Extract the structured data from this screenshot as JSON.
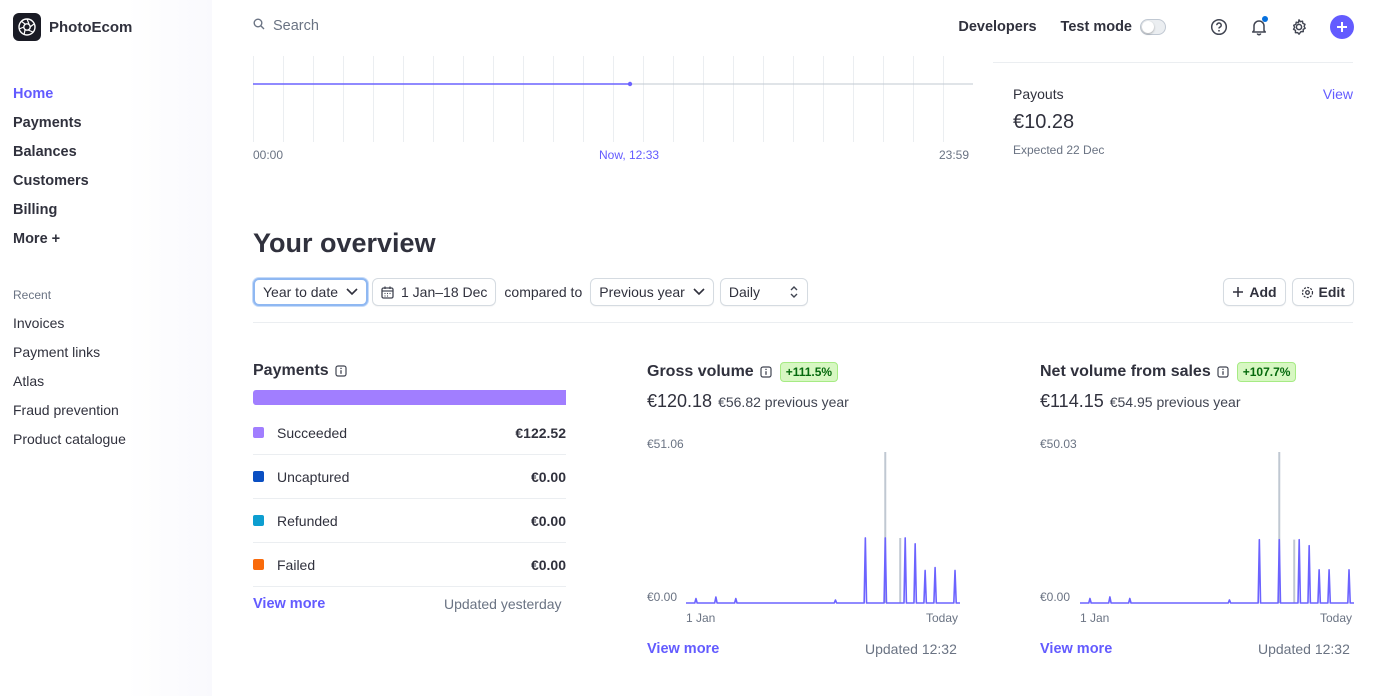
{
  "brand": {
    "name": "PhotoEcom"
  },
  "nav": {
    "items": [
      {
        "label": "Home",
        "active": true
      },
      {
        "label": "Payments"
      },
      {
        "label": "Balances"
      },
      {
        "label": "Customers"
      },
      {
        "label": "Billing"
      },
      {
        "label": "More +"
      }
    ],
    "recent_label": "Recent",
    "recent": [
      {
        "label": "Invoices"
      },
      {
        "label": "Payment links"
      },
      {
        "label": "Atlas"
      },
      {
        "label": "Fraud prevention"
      },
      {
        "label": "Product catalogue"
      }
    ]
  },
  "topbar": {
    "search_placeholder": "Search",
    "developers": "Developers",
    "test_mode": "Test mode",
    "test_mode_on": false
  },
  "today_chart": {
    "start": "00:00",
    "now": "Now, 12:33",
    "end": "23:59"
  },
  "payouts": {
    "label": "Payouts",
    "view": "View",
    "amount": "€10.28",
    "expected": "Expected 22 Dec"
  },
  "overview": {
    "title": "Your overview",
    "range": "Year to date",
    "dates": "1 Jan–18 Dec",
    "compared_to": "compared to",
    "comparison": "Previous year",
    "interval": "Daily",
    "add": "Add",
    "edit": "Edit"
  },
  "payments_card": {
    "title": "Payments",
    "rows": [
      {
        "label": "Succeeded",
        "value": "€122.52",
        "color": "#a17eff"
      },
      {
        "label": "Uncaptured",
        "value": "€0.00",
        "color": "#0a4fc2"
      },
      {
        "label": "Refunded",
        "value": "€0.00",
        "color": "#0d9ed0"
      },
      {
        "label": "Failed",
        "value": "€0.00",
        "color": "#f96a0b"
      }
    ],
    "view_more": "View more",
    "updated": "Updated yesterday"
  },
  "gross_card": {
    "title": "Gross volume",
    "badge": "+111.5%",
    "amount": "€120.18",
    "previous": "€56.82 previous year",
    "ymax_label": "€51.06",
    "ymin_label": "€0.00",
    "x_start": "1 Jan",
    "x_end": "Today",
    "view_more": "View more",
    "updated": "Updated 12:32"
  },
  "net_card": {
    "title": "Net volume from sales",
    "badge": "+107.7%",
    "amount": "€114.15",
    "previous": "€54.95 previous year",
    "ymax_label": "€50.03",
    "ymin_label": "€0.00",
    "x_start": "1 Jan",
    "x_end": "Today",
    "view_more": "View more",
    "updated": "Updated 12:32"
  },
  "colors": {
    "accent": "#635bff",
    "chart_line": "#6c63ff",
    "compare_line": "#c0c8d2"
  },
  "chart_data": [
    {
      "type": "line",
      "title": "",
      "x_start": "1 Jan",
      "x_end": "Today",
      "ylim": [
        0,
        51.06
      ],
      "series": [
        {
          "values": [
            0,
            0,
            0,
            0,
            0,
            0,
            0,
            0,
            0,
            0,
            0,
            0,
            0,
            0,
            0,
            0,
            0,
            0,
            0,
            0,
            0,
            0,
            0,
            0,
            0,
            0,
            0,
            0,
            0,
            0,
            0,
            0,
            0,
            0,
            0,
            0,
            0,
            0,
            0,
            0,
            0,
            0,
            0,
            0,
            0,
            0,
            0,
            0,
            0,
            0,
            0,
            0,
            0,
            0,
            0,
            0,
            0,
            0,
            0,
            0,
            0,
            0,
            0,
            0,
            0,
            0,
            0,
            0,
            0,
            0,
            0,
            0,
            0,
            0,
            0,
            0,
            0,
            0,
            0,
            0,
            0,
            0,
            0,
            0,
            0,
            0,
            0,
            0,
            0,
            0,
            0,
            0,
            0,
            0,
            0,
            0,
            0,
            0,
            0,
            0,
            0,
            0,
            0,
            0,
            0,
            0,
            0,
            0,
            0,
            0,
            0,
            0,
            0,
            0,
            0,
            0,
            0,
            0,
            0,
            0,
            0,
            0,
            0,
            0,
            0,
            0,
            0,
            0,
            0,
            0,
            0,
            0,
            0,
            0,
            0,
            0,
            0,
            0,
            0,
            0,
            0,
            0,
            0,
            0,
            0,
            0,
            0,
            0,
            0,
            0,
            0,
            0,
            0,
            0,
            0,
            0,
            0,
            0,
            0,
            0,
            0,
            0,
            0,
            0,
            0,
            0,
            0,
            0,
            0,
            0,
            0,
            0,
            0,
            0,
            0,
            0,
            0,
            0,
            0,
            0,
            0,
            0,
            0,
            0,
            0,
            0,
            0,
            0,
            0,
            0,
            0,
            0,
            0,
            0,
            0,
            0,
            0,
            0,
            0,
            0,
            0,
            0,
            0,
            0,
            0,
            0,
            0,
            0,
            0,
            0,
            0,
            0,
            0,
            0,
            0,
            0,
            0,
            0,
            0,
            0,
            0,
            0,
            0,
            0,
            0,
            0,
            0,
            0,
            0,
            0,
            0,
            0,
            0,
            0,
            0,
            0,
            0,
            0,
            0,
            0,
            0,
            0,
            0,
            0,
            0,
            0,
            0,
            0,
            0,
            0,
            0,
            0,
            0,
            0,
            0,
            0,
            0,
            0,
            0,
            0,
            0,
            0,
            0,
            0,
            0,
            0,
            0,
            0,
            0,
            0,
            0,
            0,
            0,
            0,
            0,
            0,
            0,
            0,
            0,
            0,
            0,
            0,
            0,
            0,
            0,
            0,
            0,
            0,
            0,
            0,
            0,
            0,
            0,
            0,
            0,
            0,
            0,
            0,
            0,
            0,
            0,
            0,
            0,
            0,
            0,
            0,
            0,
            0,
            0,
            0,
            0,
            0,
            0,
            0,
            0,
            0,
            0,
            0,
            0,
            0,
            0,
            0,
            0,
            0,
            0,
            0,
            0,
            0,
            0,
            0,
            0,
            0,
            0,
            0,
            0,
            0,
            0,
            0,
            0,
            0,
            0,
            0,
            0,
            0,
            0,
            0,
            0,
            0,
            0,
            0,
            0,
            0,
            0,
            0,
            0,
            0,
            0,
            0,
            0,
            0,
            0,
            0,
            0,
            0,
            0
          ]
        },
        {
          "spikes": [
            [
              4,
              1.5
            ],
            [
              12,
              2
            ],
            [
              20,
              1.5
            ],
            [
              60,
              1
            ],
            [
              72,
              22
            ],
            [
              80,
              22
            ],
            [
              88,
              22
            ],
            [
              92,
              20
            ],
            [
              96,
              11
            ],
            [
              100,
              12
            ],
            [
              108,
              11
            ]
          ]
        },
        {
          "compare_spikes": [
            [
              80,
              51.06
            ],
            [
              86,
              22
            ]
          ]
        }
      ]
    },
    {
      "type": "line",
      "title": "",
      "x_start": "1 Jan",
      "x_end": "Today",
      "ylim": [
        0,
        50.03
      ],
      "series": [
        {
          "spikes": [
            [
              4,
              1.5
            ],
            [
              12,
              2
            ],
            [
              20,
              1.5
            ],
            [
              60,
              1
            ],
            [
              72,
              21
            ],
            [
              80,
              21
            ],
            [
              88,
              21
            ],
            [
              92,
              19
            ],
            [
              96,
              11
            ],
            [
              100,
              11
            ],
            [
              108,
              11
            ]
          ]
        },
        {
          "compare_spikes": [
            [
              80,
              50.03
            ],
            [
              86,
              21
            ]
          ]
        }
      ]
    }
  ]
}
